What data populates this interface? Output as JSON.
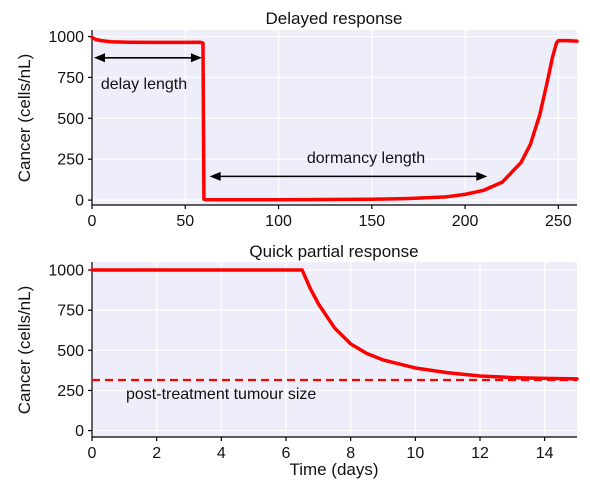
{
  "chart_data": [
    {
      "type": "line",
      "title": "Delayed response",
      "xlabel": "",
      "ylabel": "Cancer (cells/nL)",
      "xlim": [
        0,
        260
      ],
      "ylim": [
        -30,
        1040
      ],
      "xticks": [
        0,
        50,
        100,
        150,
        200,
        250
      ],
      "yticks": [
        0,
        250,
        500,
        750,
        1000
      ],
      "grid": true,
      "series": [
        {
          "color": "#ff0000",
          "x": [
            0,
            2,
            5,
            10,
            20,
            30,
            40,
            50,
            58,
            59.5,
            60,
            61,
            70,
            100,
            150,
            170,
            190,
            200,
            210,
            220,
            230,
            235,
            240,
            244,
            247,
            249,
            250,
            255,
            260
          ],
          "y": [
            995,
            982,
            975,
            968,
            965,
            964,
            964,
            964,
            965,
            960,
            5,
            3,
            2,
            2,
            5,
            10,
            20,
            35,
            60,
            110,
            230,
            340,
            520,
            720,
            880,
            960,
            975,
            975,
            972
          ]
        }
      ],
      "annotations": [
        {
          "text": "delay length",
          "arrow": "double",
          "x_from": 0,
          "x_to": 60,
          "y": 870
        },
        {
          "text": "dormancy length",
          "arrow": "double",
          "x_from": 62,
          "x_to": 213,
          "y": 145
        }
      ]
    },
    {
      "type": "line",
      "title": "Quick partial response",
      "xlabel": "Time (days)",
      "ylabel": "Cancer (cells/nL)",
      "xlim": [
        0,
        15
      ],
      "ylim": [
        -40,
        1050
      ],
      "xticks": [
        0,
        2,
        4,
        6,
        8,
        10,
        12,
        14
      ],
      "yticks": [
        0,
        250,
        500,
        750,
        1000
      ],
      "grid": true,
      "series": [
        {
          "color": "#ff0000",
          "x": [
            0,
            2,
            4,
            6,
            6.5,
            6.75,
            7,
            7.5,
            8,
            8.5,
            9,
            10,
            11,
            12,
            13,
            14,
            15
          ],
          "y": [
            1000,
            1000,
            1000,
            1000,
            1000,
            885,
            790,
            640,
            540,
            480,
            440,
            390,
            360,
            340,
            330,
            325,
            322
          ]
        }
      ],
      "reference_line": {
        "y": 315,
        "style": "dashed",
        "color": "#ff0000",
        "label": "post-treatment tumour size"
      }
    }
  ]
}
